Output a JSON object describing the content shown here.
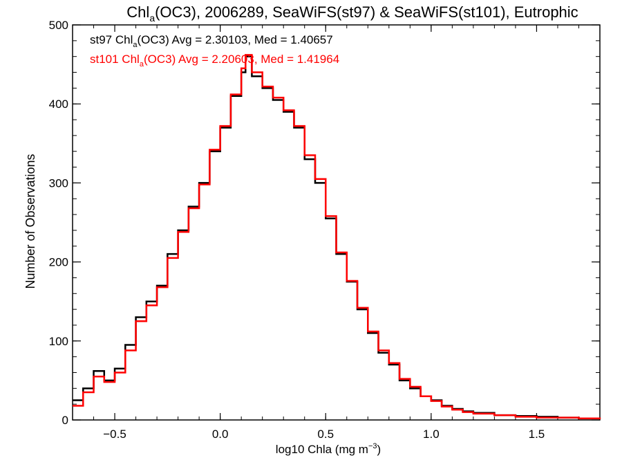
{
  "chart_data": {
    "type": "line",
    "title": {
      "pre": "Chl",
      "sub": "a",
      "post": "(OC3), 2006289, SeaWiFS(st97) & SeaWiFS(st101), Eutrophic"
    },
    "xlabel": {
      "pre": "log10 Chla (mg m",
      "sup": "−3",
      "post": ")"
    },
    "ylabel": "Number of Observations",
    "xlim": [
      -0.7,
      1.8
    ],
    "ylim": [
      0,
      500
    ],
    "xticks": [
      -0.5,
      0.0,
      0.5,
      1.0,
      1.5
    ],
    "xtick_labels": [
      "−0.5",
      "0.0",
      "0.5",
      "1.0",
      "1.5"
    ],
    "yticks": [
      0,
      100,
      200,
      300,
      400,
      500
    ],
    "ytick_labels": [
      "0",
      "100",
      "200",
      "300",
      "400",
      "500"
    ],
    "grid": false,
    "annotations": [
      {
        "color": "#000000",
        "pre": "st97 Chl",
        "sub": "a",
        "post": "(OC3) Avg = 2.30103, Med = 1.40657"
      },
      {
        "color": "#ff0000",
        "pre": "st101 Chl",
        "sub": "a",
        "post": "(OC3) Avg = 2.20603, Med = 1.41964"
      }
    ],
    "series": [
      {
        "color": "#000000",
        "x": [
          -0.7,
          -0.65,
          -0.6,
          -0.55,
          -0.5,
          -0.45,
          -0.4,
          -0.35,
          -0.3,
          -0.25,
          -0.2,
          -0.15,
          -0.1,
          -0.05,
          0.0,
          0.05,
          0.1,
          0.12,
          0.15,
          0.2,
          0.25,
          0.3,
          0.35,
          0.4,
          0.45,
          0.5,
          0.55,
          0.6,
          0.65,
          0.7,
          0.75,
          0.8,
          0.85,
          0.9,
          0.95,
          1.0,
          1.05,
          1.1,
          1.15,
          1.2,
          1.3,
          1.4,
          1.5,
          1.6,
          1.7,
          1.8
        ],
        "y": [
          25,
          40,
          62,
          50,
          65,
          95,
          130,
          150,
          170,
          210,
          240,
          270,
          300,
          340,
          370,
          410,
          440,
          460,
          435,
          420,
          405,
          390,
          370,
          330,
          300,
          255,
          210,
          175,
          140,
          110,
          85,
          70,
          50,
          40,
          30,
          25,
          18,
          14,
          11,
          9,
          6,
          5,
          4,
          3,
          2,
          2
        ]
      },
      {
        "color": "#ff0000",
        "x": [
          -0.7,
          -0.65,
          -0.6,
          -0.55,
          -0.5,
          -0.45,
          -0.4,
          -0.35,
          -0.3,
          -0.25,
          -0.2,
          -0.15,
          -0.1,
          -0.05,
          0.0,
          0.05,
          0.1,
          0.12,
          0.15,
          0.2,
          0.25,
          0.3,
          0.35,
          0.4,
          0.45,
          0.5,
          0.55,
          0.6,
          0.65,
          0.7,
          0.75,
          0.8,
          0.85,
          0.9,
          0.95,
          1.0,
          1.05,
          1.1,
          1.15,
          1.2,
          1.3,
          1.4,
          1.5,
          1.6,
          1.7,
          1.8
        ],
        "y": [
          18,
          35,
          55,
          48,
          60,
          88,
          125,
          145,
          168,
          205,
          238,
          268,
          298,
          342,
          372,
          412,
          445,
          462,
          440,
          422,
          408,
          392,
          372,
          335,
          305,
          258,
          212,
          176,
          142,
          112,
          88,
          72,
          52,
          42,
          30,
          24,
          17,
          13,
          10,
          8,
          6,
          4,
          3,
          3,
          2,
          1
        ]
      }
    ]
  }
}
